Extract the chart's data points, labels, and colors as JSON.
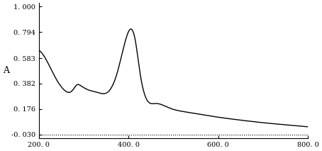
{
  "xlabel": "",
  "ylabel": "A",
  "xlim": [
    200.0,
    800.0
  ],
  "ylim": [
    -0.06,
    1.03
  ],
  "yticks": [
    1.0,
    0.794,
    0.583,
    0.382,
    0.176,
    -0.03
  ],
  "ytick_labels": [
    "1. 000",
    "0. 794",
    "0. 583",
    "0. 382",
    "0. 176",
    "-0. 030"
  ],
  "xticks": [
    200.0,
    400.0,
    600.0,
    800.0
  ],
  "xtick_labels": [
    "200. 0",
    "400. 0",
    "600. 0",
    "800. 0"
  ],
  "line_color": "#000000",
  "dot_line_color": "#000000",
  "bg_color": "#ffffff",
  "title": "",
  "dot_line_y": -0.03,
  "curve_points_x": [
    200,
    220,
    240,
    255,
    265,
    275,
    285,
    295,
    310,
    330,
    355,
    375,
    395,
    405,
    415,
    425,
    440,
    460,
    490,
    530,
    580,
    640,
    700,
    750,
    800
  ],
  "curve_points_y": [
    0.65,
    0.55,
    0.41,
    0.335,
    0.31,
    0.325,
    0.37,
    0.36,
    0.33,
    0.31,
    0.315,
    0.47,
    0.75,
    0.82,
    0.73,
    0.48,
    0.255,
    0.22,
    0.185,
    0.15,
    0.12,
    0.09,
    0.065,
    0.048,
    0.032
  ]
}
